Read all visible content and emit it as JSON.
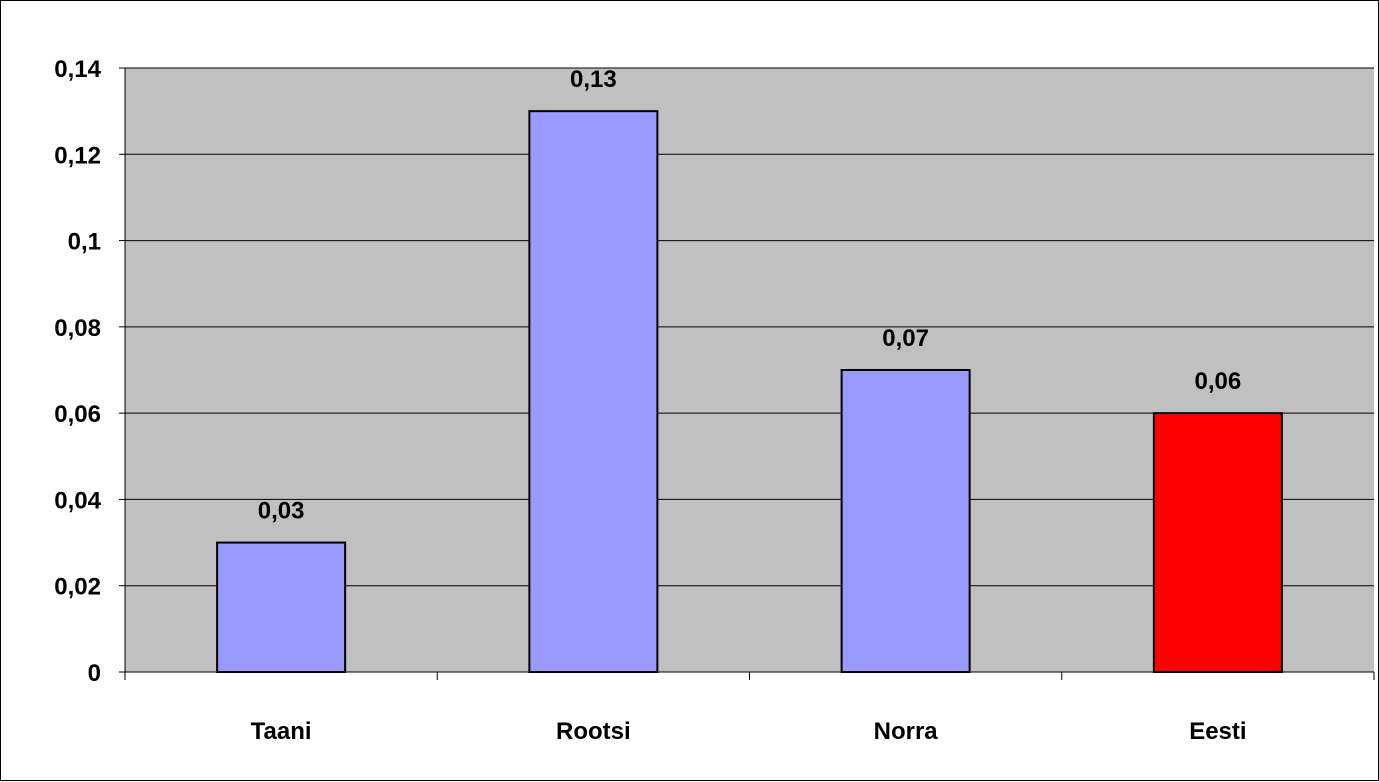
{
  "chart_data": {
    "type": "bar",
    "categories": [
      "Taani",
      "Rootsi",
      "Norra",
      "Eesti"
    ],
    "values": [
      0.03,
      0.13,
      0.07,
      0.06
    ],
    "value_labels": [
      "0,03",
      "0,13",
      "0,07",
      "0,06"
    ],
    "bar_colors": [
      "#9999ff",
      "#9999ff",
      "#9999ff",
      "#ff0000"
    ],
    "ylim": [
      0,
      0.14
    ],
    "yticks": [
      0,
      0.02,
      0.04,
      0.06,
      0.08,
      0.1,
      0.12,
      0.14
    ],
    "ytick_labels": [
      "0",
      "0,02",
      "0,04",
      "0,06",
      "0,08",
      "0,1",
      "0,12",
      "0,14"
    ],
    "title": "",
    "xlabel": "",
    "ylabel": "",
    "grid": true,
    "legend": "none",
    "plot_background": "#c0c0c0",
    "gridline_color": "#000000"
  }
}
